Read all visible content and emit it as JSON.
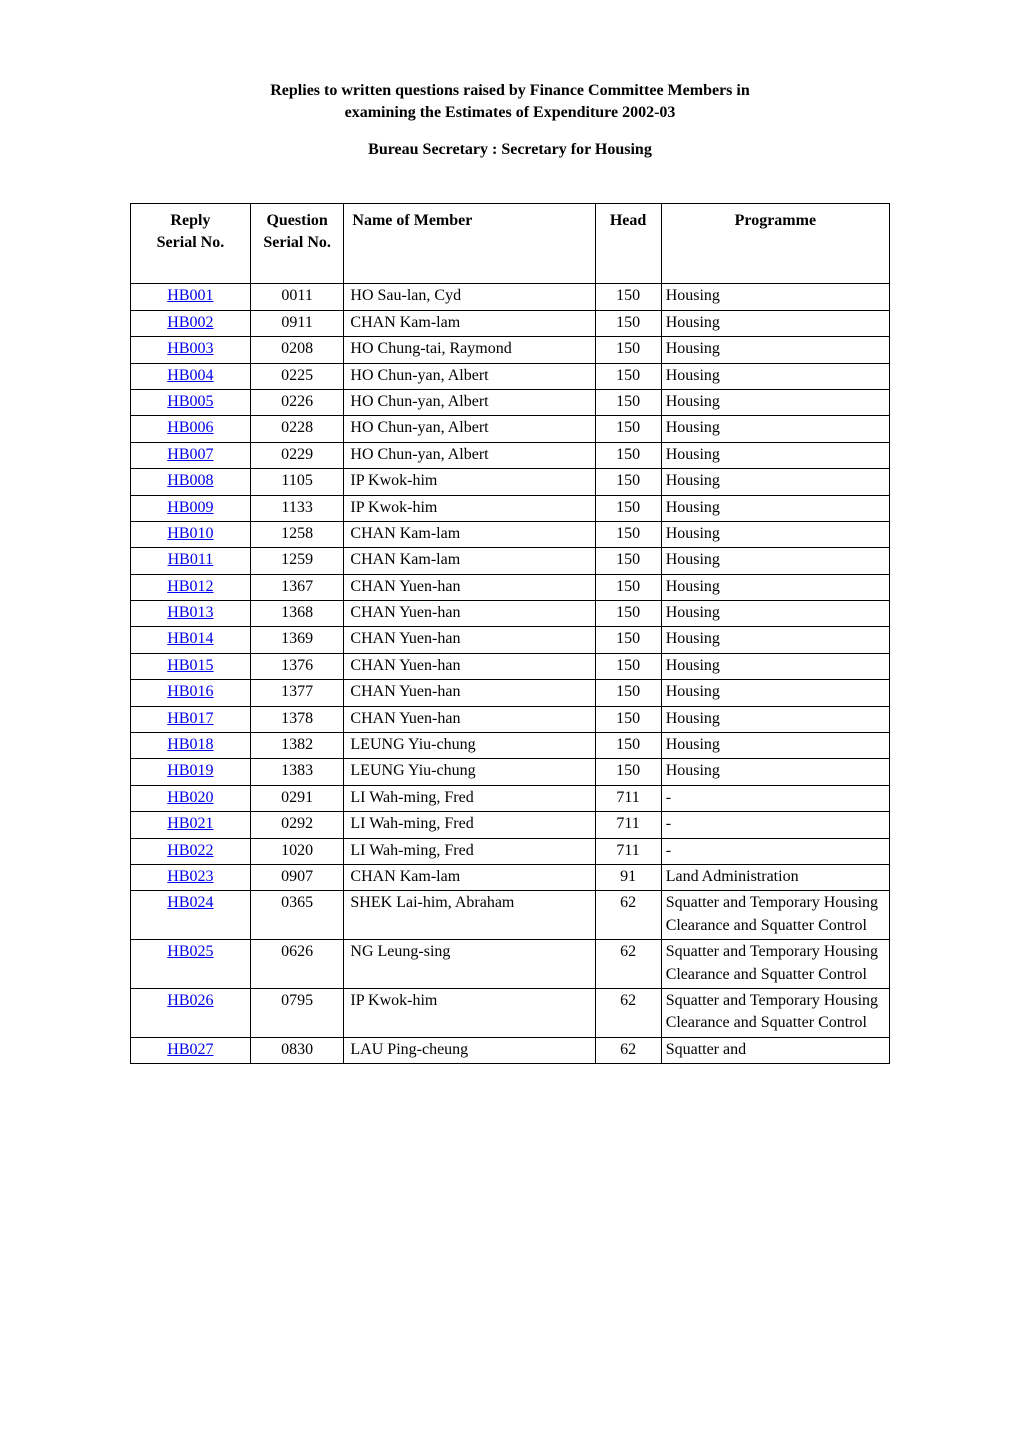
{
  "title_line1": "Replies to written questions raised by Finance Committee Members in",
  "title_line2": "examining the Estimates of Expenditure 2002-03",
  "subtitle": "Bureau Secretary : Secretary for Housing",
  "columns": {
    "reply_line1": "Reply",
    "reply_line2": "Serial No.",
    "question_line1": "Question",
    "question_line2": "Serial No.",
    "member": "Name of Member",
    "head": "Head",
    "programme": "Programme"
  },
  "rows": [
    {
      "reply": "HB001",
      "question": "0011",
      "member": "HO Sau-lan, Cyd",
      "head": "150",
      "programme": "Housing"
    },
    {
      "reply": "HB002",
      "question": "0911",
      "member": "CHAN Kam-lam",
      "head": "150",
      "programme": "Housing"
    },
    {
      "reply": "HB003",
      "question": "0208",
      "member": "HO Chung-tai, Raymond",
      "head": "150",
      "programme": "Housing"
    },
    {
      "reply": "HB004",
      "question": "0225",
      "member": "HO Chun-yan, Albert",
      "head": "150",
      "programme": "Housing"
    },
    {
      "reply": "HB005",
      "question": "0226",
      "member": "HO Chun-yan, Albert",
      "head": "150",
      "programme": "Housing"
    },
    {
      "reply": "HB006",
      "question": "0228",
      "member": "HO Chun-yan, Albert",
      "head": "150",
      "programme": "Housing"
    },
    {
      "reply": "HB007",
      "question": "0229",
      "member": "HO Chun-yan, Albert",
      "head": "150",
      "programme": "Housing"
    },
    {
      "reply": "HB008",
      "question": "1105",
      "member": "IP Kwok-him",
      "head": "150",
      "programme": "Housing"
    },
    {
      "reply": "HB009",
      "question": "1133",
      "member": "IP Kwok-him",
      "head": "150",
      "programme": "Housing"
    },
    {
      "reply": "HB010",
      "question": "1258",
      "member": "CHAN Kam-lam",
      "head": "150",
      "programme": "Housing"
    },
    {
      "reply": "HB011",
      "question": "1259",
      "member": "CHAN Kam-lam",
      "head": "150",
      "programme": "Housing"
    },
    {
      "reply": "HB012",
      "question": "1367",
      "member": "CHAN Yuen-han",
      "head": "150",
      "programme": "Housing"
    },
    {
      "reply": "HB013",
      "question": "1368",
      "member": "CHAN Yuen-han",
      "head": "150",
      "programme": "Housing"
    },
    {
      "reply": "HB014",
      "question": "1369",
      "member": "CHAN Yuen-han",
      "head": "150",
      "programme": "Housing"
    },
    {
      "reply": "HB015",
      "question": "1376",
      "member": "CHAN Yuen-han",
      "head": "150",
      "programme": "Housing"
    },
    {
      "reply": "HB016",
      "question": "1377",
      "member": "CHAN Yuen-han",
      "head": "150",
      "programme": "Housing"
    },
    {
      "reply": "HB017",
      "question": "1378",
      "member": "CHAN Yuen-han",
      "head": "150",
      "programme": "Housing"
    },
    {
      "reply": "HB018",
      "question": "1382",
      "member": "LEUNG Yiu-chung",
      "head": "150",
      "programme": "Housing"
    },
    {
      "reply": "HB019",
      "question": "1383",
      "member": "LEUNG Yiu-chung",
      "head": "150",
      "programme": "Housing"
    },
    {
      "reply": "HB020",
      "question": "0291",
      "member": "LI Wah-ming, Fred",
      "head": "711",
      "programme": "-"
    },
    {
      "reply": "HB021",
      "question": "0292",
      "member": "LI Wah-ming, Fred",
      "head": "711",
      "programme": "-"
    },
    {
      "reply": "HB022",
      "question": "1020",
      "member": "LI Wah-ming, Fred",
      "head": "711",
      "programme": "-"
    },
    {
      "reply": "HB023",
      "question": "0907",
      "member": "CHAN Kam-lam",
      "head": "91",
      "programme": "Land Administration"
    },
    {
      "reply": "HB024",
      "question": "0365",
      "member": "SHEK Lai-him, Abraham",
      "head": "62",
      "programme": "Squatter and Temporary Housing Clearance and Squatter Control"
    },
    {
      "reply": "HB025",
      "question": "0626",
      "member": "NG Leung-sing",
      "head": "62",
      "programme": "Squatter and Temporary Housing Clearance and Squatter Control"
    },
    {
      "reply": "HB026",
      "question": "0795",
      "member": "IP Kwok-him",
      "head": "62",
      "programme": "Squatter and Temporary Housing Clearance and Squatter Control"
    },
    {
      "reply": "HB027",
      "question": "0830",
      "member": "LAU Ping-cheung",
      "head": "62",
      "programme": "Squatter and"
    }
  ]
}
